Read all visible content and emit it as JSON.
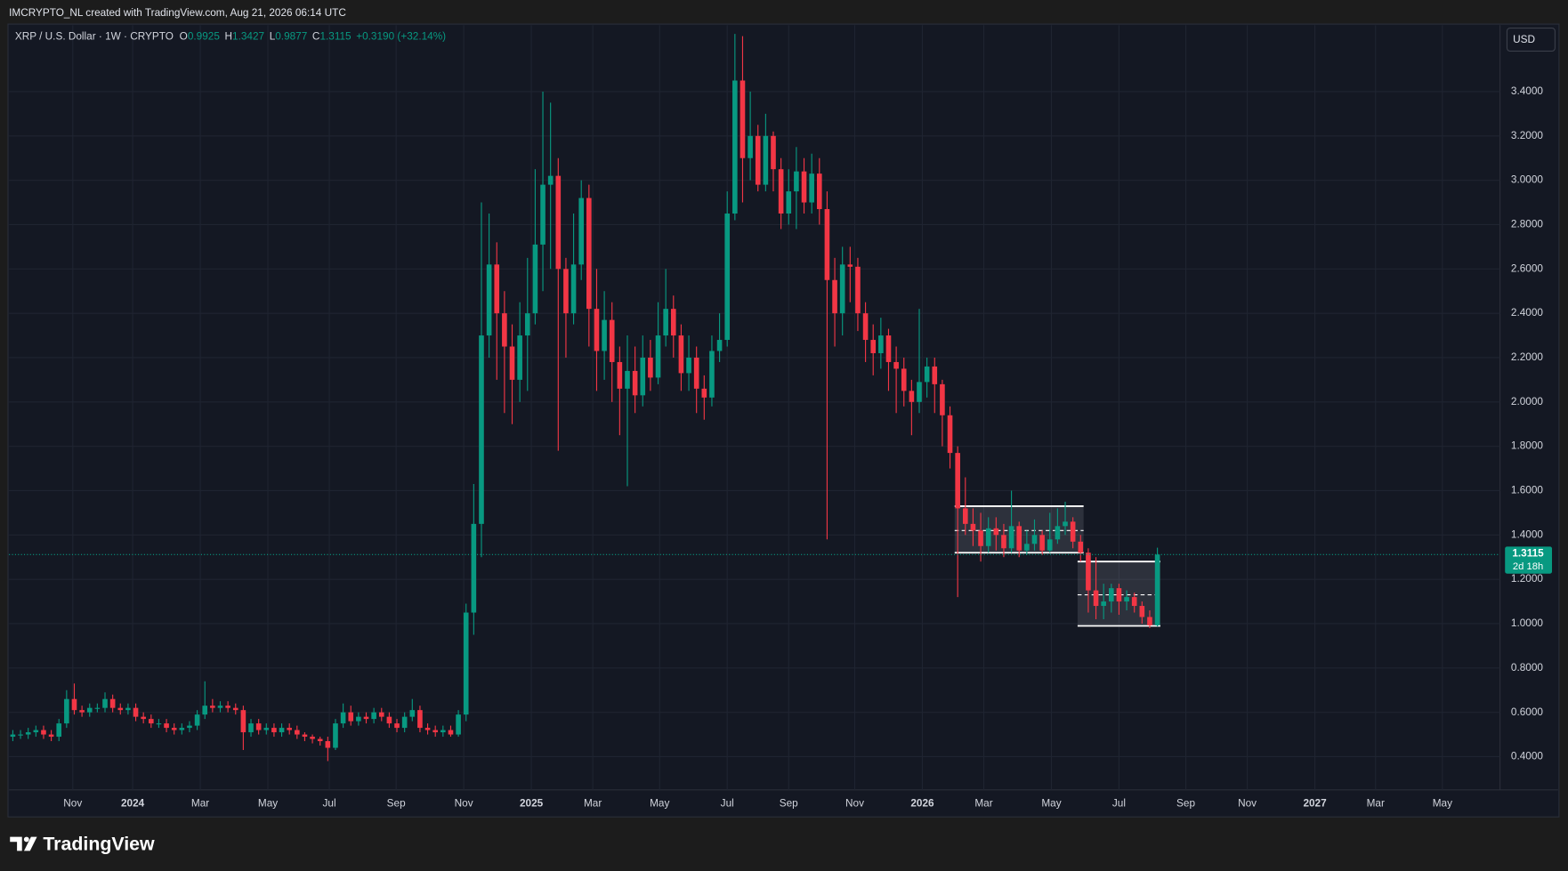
{
  "header": {
    "attribution": "IMCRYPTO_NL created with TradingView.com, Aug 21, 2026 06:14 UTC",
    "brand": "TradingView"
  },
  "chart_data": {
    "type": "candlestick",
    "title": "XRP / U.S. Dollar · 1W · CRYPTO",
    "ohlc_labels": [
      "O",
      "H",
      "L",
      "C"
    ],
    "change": "+0.3190 (+32.14%)",
    "currency": "USD",
    "countdown": "2d 18h",
    "up_color": "#089981",
    "down_color": "#f23645",
    "grid": true,
    "open": [
      0.49,
      0.5,
      0.5,
      0.51,
      0.52,
      0.5,
      0.49,
      0.55,
      0.66,
      0.61,
      0.6,
      0.62,
      0.62,
      0.66,
      0.62,
      0.61,
      0.62,
      0.58,
      0.57,
      0.55,
      0.55,
      0.53,
      0.52,
      0.53,
      0.54,
      0.59,
      0.63,
      0.62,
      0.63,
      0.62,
      0.61,
      0.51,
      0.55,
      0.52,
      0.53,
      0.51,
      0.53,
      0.52,
      0.5,
      0.49,
      0.48,
      0.47,
      0.44,
      0.55,
      0.6,
      0.56,
      0.58,
      0.57,
      0.6,
      0.58,
      0.55,
      0.53,
      0.58,
      0.61,
      0.53,
      0.52,
      0.51,
      0.52,
      0.5,
      0.59,
      1.05,
      1.45,
      2.3,
      2.62,
      2.4,
      2.25,
      2.1,
      2.3,
      2.4,
      2.71,
      2.98,
      3.02,
      2.6,
      2.4,
      2.62,
      2.92,
      2.42,
      2.23,
      2.37,
      2.18,
      2.06,
      2.14,
      2.03,
      2.2,
      2.11,
      2.3,
      2.42,
      2.3,
      2.13,
      2.2,
      2.06,
      2.02,
      2.23,
      2.28,
      2.85,
      3.45,
      3.1,
      3.2,
      2.98,
      3.2,
      3.05,
      2.85,
      2.95,
      3.04,
      2.9,
      3.03,
      2.87,
      2.55,
      2.4,
      2.62,
      2.61,
      2.4,
      2.28,
      2.22,
      2.3,
      2.18,
      2.15,
      2.05,
      2.0,
      2.09,
      2.16,
      2.08,
      1.94,
      1.77,
      1.52,
      1.45,
      1.42,
      1.35,
      1.43,
      1.4,
      1.34,
      1.44,
      1.33,
      1.36,
      1.4,
      1.33,
      1.38,
      1.44,
      1.46,
      1.37,
      1.32,
      1.15,
      1.08,
      1.1,
      1.16,
      1.1,
      1.12,
      1.08,
      1.03,
      0.9925
    ],
    "high": [
      0.52,
      0.52,
      0.53,
      0.54,
      0.54,
      0.52,
      0.57,
      0.7,
      0.73,
      0.63,
      0.64,
      0.64,
      0.69,
      0.68,
      0.64,
      0.64,
      0.64,
      0.6,
      0.59,
      0.57,
      0.57,
      0.55,
      0.55,
      0.56,
      0.61,
      0.74,
      0.66,
      0.65,
      0.65,
      0.64,
      0.63,
      0.57,
      0.57,
      0.55,
      0.55,
      0.55,
      0.55,
      0.54,
      0.51,
      0.5,
      0.49,
      0.49,
      0.57,
      0.64,
      0.63,
      0.6,
      0.6,
      0.62,
      0.62,
      0.6,
      0.57,
      0.6,
      0.66,
      0.63,
      0.55,
      0.54,
      0.54,
      0.54,
      0.61,
      1.09,
      1.63,
      2.9,
      2.85,
      2.72,
      2.5,
      2.35,
      2.45,
      2.65,
      3.05,
      3.4,
      3.35,
      3.1,
      2.65,
      2.85,
      3.0,
      2.98,
      2.6,
      2.5,
      2.45,
      2.25,
      2.3,
      2.25,
      2.3,
      2.28,
      2.45,
      2.6,
      2.48,
      2.35,
      2.3,
      2.25,
      2.12,
      2.3,
      2.4,
      2.95,
      3.66,
      3.65,
      3.4,
      3.25,
      3.3,
      3.22,
      3.1,
      3.05,
      3.15,
      3.1,
      3.12,
      3.1,
      2.95,
      2.65,
      2.7,
      2.7,
      2.65,
      2.45,
      2.35,
      2.38,
      2.33,
      2.25,
      2.2,
      2.1,
      2.42,
      2.2,
      2.2,
      2.1,
      1.98,
      1.8,
      1.66,
      1.52,
      1.5,
      1.48,
      1.48,
      1.45,
      1.6,
      1.46,
      1.42,
      1.47,
      1.42,
      1.5,
      1.52,
      1.55,
      1.48,
      1.4,
      1.34,
      1.3,
      1.18,
      1.18,
      1.18,
      1.15,
      1.14,
      1.1,
      1.06,
      1.3427
    ],
    "low": [
      0.47,
      0.48,
      0.48,
      0.49,
      0.48,
      0.47,
      0.47,
      0.53,
      0.59,
      0.58,
      0.58,
      0.6,
      0.6,
      0.6,
      0.59,
      0.59,
      0.56,
      0.55,
      0.53,
      0.53,
      0.51,
      0.5,
      0.5,
      0.51,
      0.52,
      0.57,
      0.6,
      0.6,
      0.6,
      0.59,
      0.43,
      0.49,
      0.5,
      0.5,
      0.49,
      0.49,
      0.5,
      0.48,
      0.47,
      0.46,
      0.45,
      0.38,
      0.43,
      0.53,
      0.54,
      0.54,
      0.55,
      0.55,
      0.56,
      0.53,
      0.51,
      0.51,
      0.56,
      0.51,
      0.5,
      0.49,
      0.49,
      0.49,
      0.49,
      0.56,
      0.95,
      1.3,
      2.2,
      2.1,
      1.95,
      1.9,
      2.0,
      2.05,
      2.35,
      2.5,
      2.6,
      1.78,
      2.2,
      2.35,
      2.55,
      2.25,
      2.05,
      2.1,
      2.0,
      1.85,
      1.62,
      1.95,
      1.98,
      2.05,
      2.08,
      2.25,
      2.2,
      2.05,
      2.05,
      1.95,
      1.92,
      1.98,
      2.18,
      2.25,
      2.82,
      2.9,
      3.0,
      2.95,
      2.95,
      2.95,
      2.78,
      2.8,
      2.78,
      2.85,
      2.85,
      2.8,
      1.38,
      2.25,
      2.3,
      2.45,
      2.32,
      2.18,
      2.12,
      2.15,
      2.05,
      1.95,
      1.98,
      1.85,
      1.95,
      2.02,
      1.95,
      1.8,
      1.7,
      1.12,
      1.4,
      1.35,
      1.28,
      1.32,
      1.33,
      1.3,
      1.32,
      1.3,
      1.31,
      1.33,
      1.31,
      1.32,
      1.36,
      1.4,
      1.34,
      1.28,
      1.05,
      1.02,
      1.02,
      1.05,
      1.04,
      1.06,
      1.05,
      1.0,
      0.98,
      0.9877
    ],
    "close": [
      0.5,
      0.5,
      0.51,
      0.52,
      0.5,
      0.49,
      0.55,
      0.66,
      0.61,
      0.6,
      0.62,
      0.62,
      0.66,
      0.62,
      0.61,
      0.62,
      0.58,
      0.57,
      0.55,
      0.55,
      0.53,
      0.52,
      0.53,
      0.54,
      0.59,
      0.63,
      0.62,
      0.63,
      0.62,
      0.61,
      0.51,
      0.55,
      0.52,
      0.53,
      0.51,
      0.53,
      0.52,
      0.5,
      0.49,
      0.48,
      0.47,
      0.44,
      0.55,
      0.6,
      0.56,
      0.58,
      0.57,
      0.6,
      0.58,
      0.55,
      0.53,
      0.58,
      0.61,
      0.53,
      0.52,
      0.51,
      0.52,
      0.5,
      0.59,
      1.05,
      1.45,
      2.3,
      2.62,
      2.4,
      2.25,
      2.1,
      2.3,
      2.4,
      2.71,
      2.98,
      3.02,
      2.6,
      2.4,
      2.62,
      2.92,
      2.42,
      2.23,
      2.37,
      2.18,
      2.06,
      2.14,
      2.03,
      2.2,
      2.11,
      2.3,
      2.42,
      2.3,
      2.13,
      2.2,
      2.06,
      2.02,
      2.23,
      2.28,
      2.85,
      3.45,
      3.1,
      3.2,
      2.98,
      3.2,
      3.05,
      2.85,
      2.95,
      3.04,
      2.9,
      3.03,
      2.87,
      2.55,
      2.4,
      2.62,
      2.61,
      2.4,
      2.28,
      2.22,
      2.3,
      2.18,
      2.15,
      2.05,
      2.0,
      2.09,
      2.16,
      2.08,
      1.94,
      1.77,
      1.52,
      1.45,
      1.42,
      1.35,
      1.43,
      1.4,
      1.34,
      1.44,
      1.33,
      1.36,
      1.4,
      1.33,
      1.38,
      1.44,
      1.46,
      1.37,
      1.32,
      1.15,
      1.08,
      1.1,
      1.16,
      1.1,
      1.12,
      1.08,
      1.03,
      0.9925,
      1.3115
    ],
    "xlim": [
      -0.5,
      193.6
    ],
    "xticks": [
      {
        "value": 7.8,
        "label": "Nov"
      },
      {
        "value": 15.6,
        "label": "2024"
      },
      {
        "value": 24.4,
        "label": "Mar"
      },
      {
        "value": 33.2,
        "label": "May"
      },
      {
        "value": 41.2,
        "label": "Jul"
      },
      {
        "value": 49.9,
        "label": "Sep"
      },
      {
        "value": 58.7,
        "label": "Nov"
      },
      {
        "value": 67.5,
        "label": "2025"
      },
      {
        "value": 75.5,
        "label": "Mar"
      },
      {
        "value": 84.2,
        "label": "May"
      },
      {
        "value": 93.0,
        "label": "Jul"
      },
      {
        "value": 101.0,
        "label": "Sep"
      },
      {
        "value": 109.6,
        "label": "Nov"
      },
      {
        "value": 118.4,
        "label": "2026"
      },
      {
        "value": 126.4,
        "label": "Mar"
      },
      {
        "value": 135.2,
        "label": "May"
      },
      {
        "value": 144.0,
        "label": "Jul"
      },
      {
        "value": 152.7,
        "label": "Sep"
      },
      {
        "value": 160.7,
        "label": "Nov"
      },
      {
        "value": 169.5,
        "label": "2027"
      },
      {
        "value": 177.4,
        "label": "Mar"
      },
      {
        "value": 186.1,
        "label": "May"
      }
    ],
    "ylim": [
      0.25,
      3.7
    ],
    "yticks": [
      {
        "value": 0.4,
        "label": "0.4000"
      },
      {
        "value": 0.6,
        "label": "0.6000"
      },
      {
        "value": 0.8,
        "label": "0.8000"
      },
      {
        "value": 1.0,
        "label": "1.0000"
      },
      {
        "value": 1.2,
        "label": "1.2000"
      },
      {
        "value": 1.4,
        "label": "1.4000"
      },
      {
        "value": 1.6,
        "label": "1.6000"
      },
      {
        "value": 1.8,
        "label": "1.8000"
      },
      {
        "value": 2.0,
        "label": "2.0000"
      },
      {
        "value": 2.2,
        "label": "2.2000"
      },
      {
        "value": 2.4,
        "label": "2.4000"
      },
      {
        "value": 2.6,
        "label": "2.6000"
      },
      {
        "value": 2.8,
        "label": "2.8000"
      },
      {
        "value": 3.0,
        "label": "3.0000"
      },
      {
        "value": 3.2,
        "label": "3.2000"
      },
      {
        "value": 3.4,
        "label": "3.4000"
      }
    ],
    "boxes": [
      {
        "start": 123,
        "end": 139,
        "top": 1.53,
        "bottom": 1.32,
        "mid": 1.42
      },
      {
        "start": 139,
        "end": 149,
        "top": 1.28,
        "bottom": 0.99,
        "mid": 1.13
      }
    ]
  }
}
